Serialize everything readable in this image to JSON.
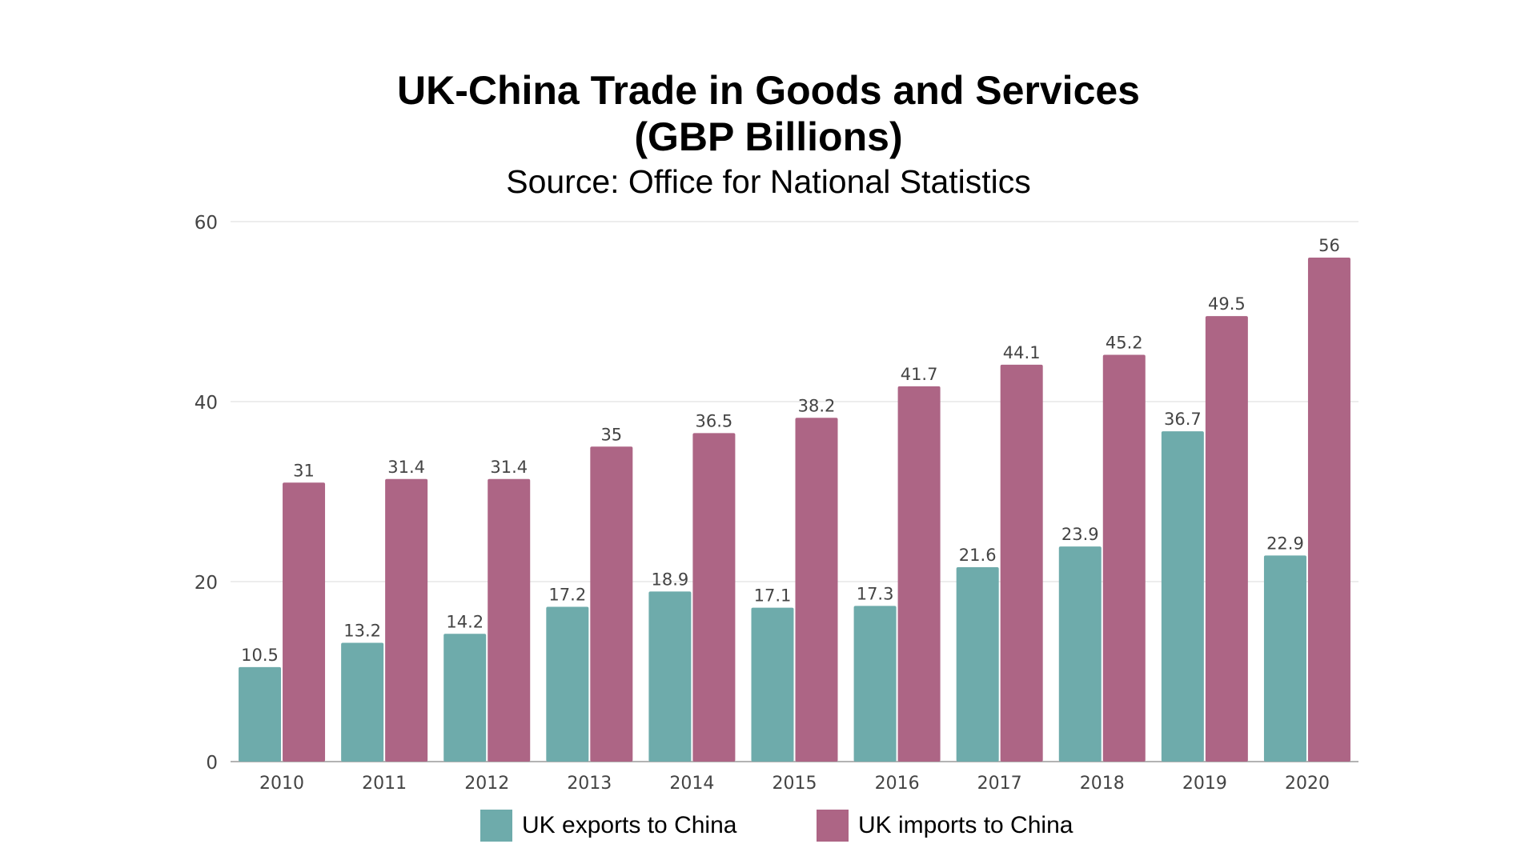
{
  "chart_data": {
    "type": "bar",
    "title_line1": "UK-China Trade in Goods and Services",
    "title_line2": "(GBP Billions)",
    "subtitle": "Source: Office for National Statistics",
    "categories": [
      "2010",
      "2011",
      "2012",
      "2013",
      "2014",
      "2015",
      "2016",
      "2017",
      "2018",
      "2019",
      "2020"
    ],
    "series": [
      {
        "name": "UK exports to China",
        "color": "#6eabab",
        "values": [
          10.5,
          13.2,
          14.2,
          17.2,
          18.9,
          17.1,
          17.3,
          21.6,
          23.9,
          36.7,
          22.9
        ]
      },
      {
        "name": "UK imports to China",
        "color": "#ad6585",
        "values": [
          31,
          31.4,
          31.4,
          35,
          36.5,
          38.2,
          41.7,
          44.1,
          45.2,
          49.5,
          56
        ]
      }
    ],
    "ylim": [
      0,
      60
    ],
    "yticks": [
      0,
      20,
      40,
      60
    ],
    "grid": true,
    "legend_position": "bottom"
  }
}
